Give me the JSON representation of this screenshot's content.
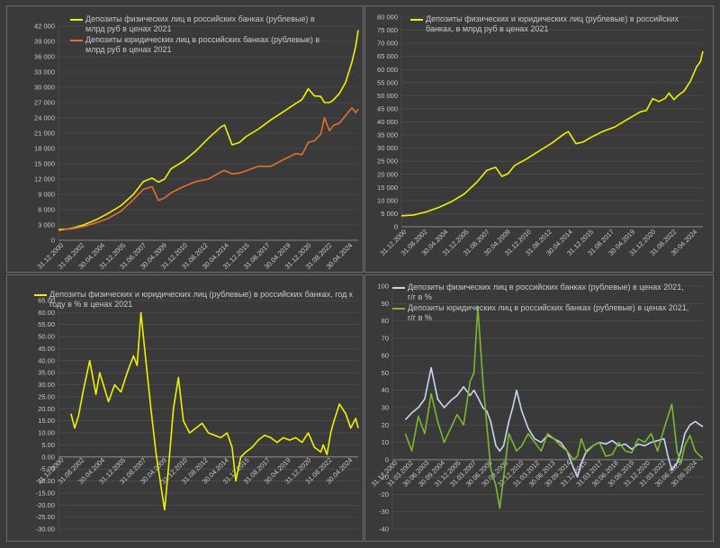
{
  "colors": {
    "background": "#3a3a3a",
    "grid": "#555555",
    "axis": "#9a9a9a",
    "text": "#c8c8c8",
    "yellow": "#f0f000",
    "orange": "#e07030",
    "lightblue": "#c5d9f0",
    "green": "#7ab82f"
  },
  "chart_data": [
    {
      "type": "line",
      "grid": true,
      "legend_position": "top-left",
      "ylim": [
        0,
        42000
      ],
      "y_ticks": [
        "0",
        "3 000",
        "6 000",
        "9 000",
        "12 000",
        "15 000",
        "18 000",
        "21 000",
        "24 000",
        "27 000",
        "30 000",
        "33 000",
        "36 000",
        "39 000",
        "42 000"
      ],
      "x_tick_labels": [
        "31.12.2000",
        "31.08.2002",
        "30.04.2004",
        "31.12.2005",
        "31.08.2007",
        "30.04.2009",
        "31.12.2010",
        "31.08.2012",
        "30.04.2014",
        "31.12.2015",
        "31.08.2017",
        "30.04.2019",
        "31.12.2020",
        "31.08.2022",
        "30.04.2024"
      ],
      "x": [
        2001.0,
        2002.0,
        2003.0,
        2004.0,
        2005.0,
        2006.0,
        2007.0,
        2007.8,
        2008.5,
        2009.0,
        2009.5,
        2010.0,
        2011.0,
        2012.0,
        2013.0,
        2014.0,
        2014.3,
        2014.9,
        2015.5,
        2016.0,
        2017.0,
        2018.0,
        2019.0,
        2020.0,
        2020.5,
        2021.0,
        2021.5,
        2022.0,
        2022.3,
        2022.7,
        2023.0,
        2023.5,
        2024.0,
        2024.5,
        2024.8,
        2025.0
      ],
      "series": [
        {
          "name": "Депозиты физических лиц в российских банках (рублевые) в млрд руб в ценах 2021",
          "color": "#f0f000",
          "values": [
            2000,
            2300,
            3000,
            4000,
            5300,
            6800,
            9000,
            11500,
            12200,
            11400,
            12000,
            14000,
            15500,
            17500,
            20000,
            22200,
            22600,
            18700,
            19200,
            20300,
            21800,
            23600,
            25200,
            26800,
            27600,
            29700,
            28300,
            28200,
            27000,
            27000,
            27500,
            28800,
            31000,
            35000,
            38000,
            41200
          ]
        },
        {
          "name": "Депозиты юридических лиц в российских банках (рублевые) в млрд руб в ценах 2021",
          "color": "#e07030",
          "values": [
            2200,
            2200,
            2700,
            3400,
            4300,
            5700,
            8000,
            10000,
            10500,
            7800,
            8300,
            9300,
            10500,
            11500,
            12000,
            13400,
            13700,
            13000,
            13200,
            13600,
            14500,
            14500,
            15800,
            17000,
            16800,
            19200,
            19500,
            20800,
            24000,
            21500,
            22500,
            23000,
            24500,
            26000,
            25000,
            25700
          ]
        }
      ]
    },
    {
      "type": "line",
      "grid": true,
      "legend_position": "top-left",
      "ylim": [
        0,
        80000
      ],
      "y_ticks": [
        "0",
        "5 000",
        "10 000",
        "15 000",
        "20 000",
        "25 000",
        "30 000",
        "35 000",
        "40 000",
        "45 000",
        "50 000",
        "55 000",
        "60 000",
        "65 000",
        "70 000",
        "75 000",
        "80 000"
      ],
      "x_tick_labels": [
        "31.12.2000",
        "31.08.2002",
        "30.04.2004",
        "31.12.2005",
        "31.08.2007",
        "30.04.2009",
        "31.12.2010",
        "31.08.2012",
        "30.04.2014",
        "31.12.2015",
        "31.08.2017",
        "30.04.2019",
        "31.12.2020",
        "31.08.2022",
        "30.04.2024"
      ],
      "x": [
        2001.0,
        2002.0,
        2003.0,
        2004.0,
        2005.0,
        2006.0,
        2007.0,
        2007.8,
        2008.5,
        2009.0,
        2009.5,
        2010.0,
        2011.0,
        2012.0,
        2013.0,
        2014.0,
        2014.3,
        2014.9,
        2015.5,
        2016.0,
        2017.0,
        2018.0,
        2019.0,
        2020.0,
        2020.5,
        2021.0,
        2021.5,
        2022.0,
        2022.3,
        2022.7,
        2023.0,
        2023.5,
        2024.0,
        2024.5,
        2024.8,
        2025.0
      ],
      "series": [
        {
          "name": "Депозиты физических и юридических лиц (рублевые) в российских банках, в млрд руб в ценах 2021",
          "color": "#f0f000",
          "values": [
            4200,
            4500,
            5700,
            7400,
            9600,
            12500,
            17000,
            21500,
            22700,
            19200,
            20300,
            23300,
            26000,
            29000,
            32000,
            35600,
            36300,
            31700,
            32400,
            33900,
            36300,
            38100,
            41000,
            43800,
            44400,
            48900,
            47800,
            49000,
            51000,
            48500,
            50000,
            51800,
            55500,
            61000,
            63000,
            67000
          ]
        }
      ]
    },
    {
      "type": "line",
      "grid": true,
      "legend_position": "top-left",
      "ylim": [
        -30,
        65
      ],
      "y_ticks": [
        "-30.00",
        "-25.00",
        "-20.00",
        "-15.00",
        "-10.00",
        "-5.00",
        "0.00",
        "5.00",
        "10.00",
        "15.00",
        "20.00",
        "25.00",
        "30.00",
        "35.00",
        "40.00",
        "45.00",
        "50.00",
        "55.00",
        "60.00",
        "65.00"
      ],
      "x_tick_labels": [
        "31.12.2000",
        "31.08.2002",
        "30.04.2004",
        "31.12.2005",
        "31.08.2007",
        "30.04.2009",
        "31.12.2010",
        "31.08.2012",
        "30.04.2014",
        "31.12.2015",
        "31.08.2017",
        "30.04.2019",
        "31.12.2020",
        "31.08.2022",
        "30.04.2024"
      ],
      "x": [
        2002.0,
        2002.3,
        2002.6,
        2003.0,
        2003.5,
        2004.0,
        2004.3,
        2004.6,
        2005.0,
        2005.5,
        2006.0,
        2006.5,
        2007.0,
        2007.3,
        2007.6,
        2008.0,
        2008.4,
        2008.8,
        2009.2,
        2009.5,
        2009.8,
        2010.2,
        2010.6,
        2011.0,
        2011.5,
        2012.0,
        2012.5,
        2013.0,
        2013.5,
        2014.0,
        2014.5,
        2014.9,
        2015.2,
        2015.6,
        2016.0,
        2016.5,
        2017.0,
        2017.5,
        2018.0,
        2018.5,
        2019.0,
        2019.5,
        2020.0,
        2020.5,
        2021.0,
        2021.5,
        2022.0,
        2022.2,
        2022.5,
        2022.8,
        2023.0,
        2023.5,
        2024.0,
        2024.4,
        2024.8,
        2025.0
      ],
      "series": [
        {
          "name": "Депозиты физических и юридических лиц (рублевые) в российских банках, год к году в % в ценах 2021",
          "color": "#f0f000",
          "values": [
            18,
            12,
            17,
            28,
            40,
            26,
            35,
            30,
            23,
            30,
            27,
            35,
            42,
            38,
            60,
            40,
            20,
            2,
            -12,
            -22,
            -5,
            20,
            33,
            15,
            10,
            12,
            14,
            10,
            9,
            8,
            10,
            4,
            -10,
            0,
            2,
            4,
            7,
            9,
            8,
            6,
            8,
            7,
            8,
            6,
            10,
            4,
            2,
            5,
            1,
            10,
            14,
            22,
            18,
            12,
            16,
            12
          ]
        }
      ]
    },
    {
      "type": "line",
      "grid": true,
      "legend_position": "top-left",
      "ylim": [
        -40,
        100
      ],
      "y_ticks": [
        "-40",
        "-30",
        "-20",
        "-10",
        "0",
        "10",
        "20",
        "30",
        "40",
        "50",
        "60",
        "70",
        "80",
        "90",
        "100"
      ],
      "x_tick_labels": [
        "31.12.2000",
        "31.03.2002",
        "30.06.2003",
        "30.09.2004",
        "31.12.2005",
        "31.03.2007",
        "30.06.2008",
        "30.09.2009",
        "31.12.2010",
        "31.03.2012",
        "30.06.2013",
        "30.09.2014",
        "31.12.2015",
        "31.03.2017",
        "30.06.2018",
        "30.09.2019",
        "31.12.2020",
        "31.03.2022",
        "30.06.2023",
        "30.09.2024"
      ],
      "x": [
        2002.0,
        2002.5,
        2003.0,
        2003.5,
        2004.0,
        2004.5,
        2005.0,
        2005.5,
        2006.0,
        2006.5,
        2007.0,
        2007.3,
        2007.6,
        2008.0,
        2008.3,
        2008.6,
        2009.0,
        2009.3,
        2009.6,
        2010.0,
        2010.3,
        2010.6,
        2011.0,
        2011.5,
        2012.0,
        2012.5,
        2013.0,
        2013.5,
        2014.0,
        2014.5,
        2015.0,
        2015.3,
        2015.6,
        2016.0,
        2016.5,
        2017.0,
        2017.5,
        2018.0,
        2018.5,
        2019.0,
        2019.5,
        2020.0,
        2020.5,
        2021.0,
        2021.5,
        2022.0,
        2022.3,
        2022.6,
        2023.0,
        2023.3,
        2023.6,
        2024.0,
        2024.4,
        2024.8,
        2025.0
      ],
      "series": [
        {
          "name": "Депозиты физических лиц в российских банках (рублевые) в ценах 2021, г/г в %",
          "color": "#c5d9f0",
          "values": [
            23,
            27,
            30,
            35,
            53,
            35,
            30,
            34,
            37,
            42,
            37,
            40,
            36,
            30,
            28,
            22,
            8,
            5,
            8,
            22,
            30,
            40,
            28,
            18,
            12,
            10,
            14,
            12,
            10,
            5,
            -5,
            -10,
            -2,
            5,
            8,
            10,
            9,
            11,
            8,
            9,
            6,
            9,
            8,
            10,
            11,
            12,
            2,
            -6,
            -2,
            5,
            15,
            20,
            22,
            20,
            19
          ]
        },
        {
          "name": "Депозиты юридических лиц в российских банках (рублевые) в ценах 2021, г/г в %",
          "color": "#7ab82f",
          "values": [
            15,
            5,
            25,
            15,
            38,
            22,
            10,
            18,
            26,
            20,
            45,
            50,
            88,
            45,
            20,
            -5,
            -15,
            -28,
            -10,
            15,
            10,
            5,
            8,
            15,
            10,
            5,
            15,
            12,
            8,
            5,
            0,
            2,
            12,
            4,
            8,
            10,
            2,
            3,
            10,
            5,
            4,
            12,
            10,
            15,
            5,
            18,
            25,
            32,
            5,
            -2,
            8,
            14,
            5,
            2,
            1
          ]
        }
      ]
    }
  ]
}
